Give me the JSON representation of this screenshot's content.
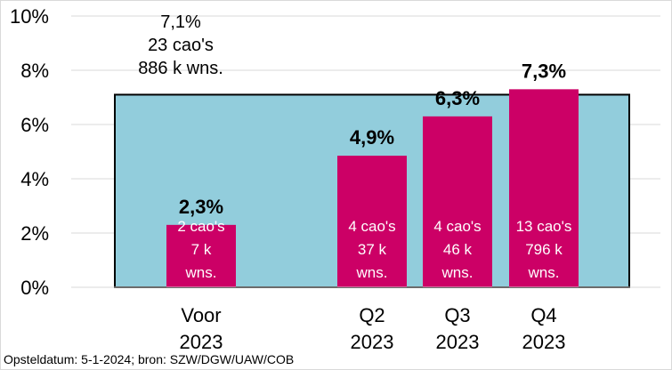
{
  "chart_data": {
    "type": "bar",
    "ylim": [
      0,
      10
    ],
    "yticks": [
      "0%",
      "2%",
      "4%",
      "6%",
      "8%",
      "10%"
    ],
    "background_band": {
      "value": 7.1,
      "color": "#92cddc",
      "labels": [
        "7,1%",
        "23 cao's",
        "886 k wns."
      ]
    },
    "bar_color": "#cc0066",
    "categories": [
      {
        "label": [
          "Voor",
          "2023"
        ],
        "value": 2.3,
        "value_label": "2,3%",
        "inner": [
          "2 cao's",
          "7 k",
          "wns."
        ]
      },
      {
        "label": [
          "Q2",
          "2023"
        ],
        "value": 4.85,
        "value_label": "4,9%",
        "inner": [
          "4 cao's",
          "37 k",
          "wns."
        ]
      },
      {
        "label": [
          "Q3",
          "2023"
        ],
        "value": 6.3,
        "value_label": "6,3%",
        "inner": [
          "4 cao's",
          "46 k",
          "wns."
        ]
      },
      {
        "label": [
          "Q4",
          "2023"
        ],
        "value": 7.3,
        "value_label": "7,3%",
        "inner": [
          "13 cao's",
          "796 k",
          "wns."
        ]
      }
    ]
  },
  "source": "Opsteldatum: 5-1-2024; bron: SZW/DGW/UAW/COB"
}
